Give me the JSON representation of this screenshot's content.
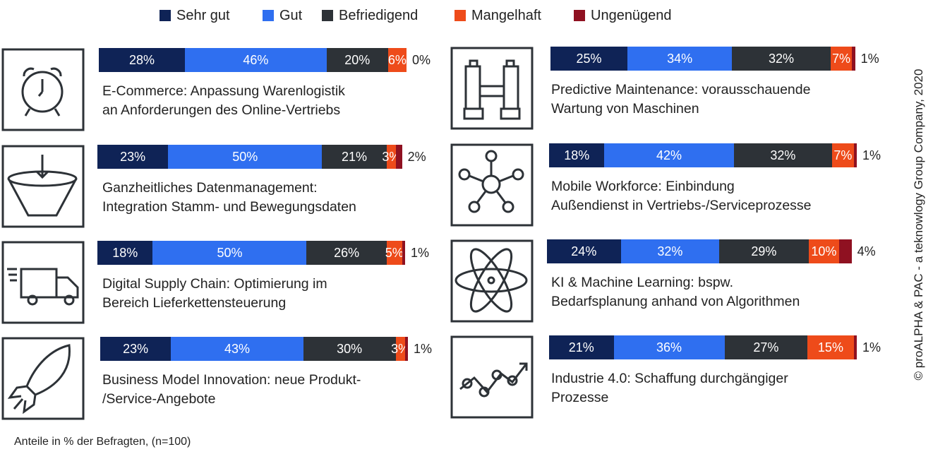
{
  "chart_data": {
    "type": "stacked-bar",
    "categories": [
      "E-Commerce: Anpassung Warenlogistik\nan Anforderungen des Online-Vertriebs",
      "Ganzheitliches Datenmanagement:\nIntegration Stamm- und Bewegungsdaten",
      "Digital Supply Chain: Optimierung im\nBereich Lieferkettensteuerung",
      "Business Model Innovation: neue Produkt-\n/Service-Angebote",
      "Predictive Maintenance: vorausschauende\nWartung von Maschinen",
      "Mobile Workforce: Einbindung\nAußendienst in Vertriebs-/Serviceprozesse",
      "KI & Machine Learning: bspw.\nBedarfsplanung anhand von Algorithmen",
      "Industrie 4.0: Schaffung durchgängiger\nProzesse"
    ],
    "series": [
      {
        "name": "Sehr gut",
        "color": "#0f2356",
        "values": [
          28,
          23,
          18,
          23,
          25,
          18,
          24,
          21
        ],
        "value_labels": [
          "28%",
          "23%",
          "18%",
          "23%",
          "25%",
          "18%",
          "24%",
          "21%"
        ]
      },
      {
        "name": "Gut",
        "color": "#2f6ff0",
        "values": [
          46,
          50,
          50,
          43,
          34,
          42,
          32,
          36
        ],
        "value_labels": [
          "46%",
          "50%",
          "50%",
          "43%",
          "34%",
          "42%",
          "32%",
          "36%"
        ]
      },
      {
        "name": "Befriedigend",
        "color": "#2d3237",
        "values": [
          20,
          21,
          26,
          30,
          32,
          32,
          29,
          27
        ],
        "value_labels": [
          "20%",
          "21%",
          "26%",
          "30%",
          "32%",
          "32%",
          "29%",
          "27%"
        ]
      },
      {
        "name": "Mangelhaft",
        "color": "#ee4b1a",
        "values": [
          6,
          3,
          5,
          3,
          7,
          7,
          10,
          15
        ],
        "value_labels": [
          "6%",
          "3%",
          "5%",
          "3%",
          "7%",
          "7%",
          "10%",
          "15%"
        ]
      },
      {
        "name": "Ungenügend",
        "color": "#8f1121",
        "values": [
          0,
          2,
          1,
          1,
          1,
          1,
          4,
          1
        ],
        "value_labels": [
          "0%",
          "2%",
          "1%",
          "1%",
          "1%",
          "1%",
          "4%",
          "1%"
        ]
      }
    ],
    "note": "Anteile in % der Befragten, (n=100)",
    "source": "© proALPHA & PAC - a teknowlogy Group Company, 2020"
  }
}
